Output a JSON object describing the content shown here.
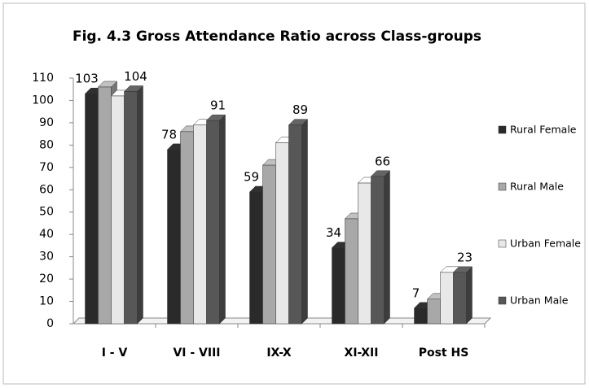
{
  "chart_data": {
    "type": "bar3d",
    "title": "Fig. 4.3 Gross Attendance Ratio across Class-groups",
    "categories": [
      "I - V",
      "VI - VIII",
      "IX-X",
      "XI-XII",
      "Post HS"
    ],
    "series": [
      {
        "name": "Rural Female",
        "color": "#2a2a2a",
        "values": [
          103,
          78,
          59,
          34,
          7
        ],
        "show_labels": true
      },
      {
        "name": "Rural Male",
        "color": "#a8a8a8",
        "values": [
          106,
          86,
          71,
          47,
          11
        ],
        "show_labels": false
      },
      {
        "name": "Urban Female",
        "color": "#e8e8e8",
        "values": [
          102,
          89,
          81,
          63,
          23
        ],
        "show_labels": false
      },
      {
        "name": "Urban Male",
        "color": "#575757",
        "values": [
          104,
          91,
          89,
          66,
          23
        ],
        "show_labels": true
      }
    ],
    "ylim": [
      0,
      110
    ],
    "yticks": [
      0,
      10,
      20,
      30,
      40,
      50,
      60,
      70,
      80,
      90,
      100,
      110
    ],
    "grid": false,
    "legend": "right"
  }
}
